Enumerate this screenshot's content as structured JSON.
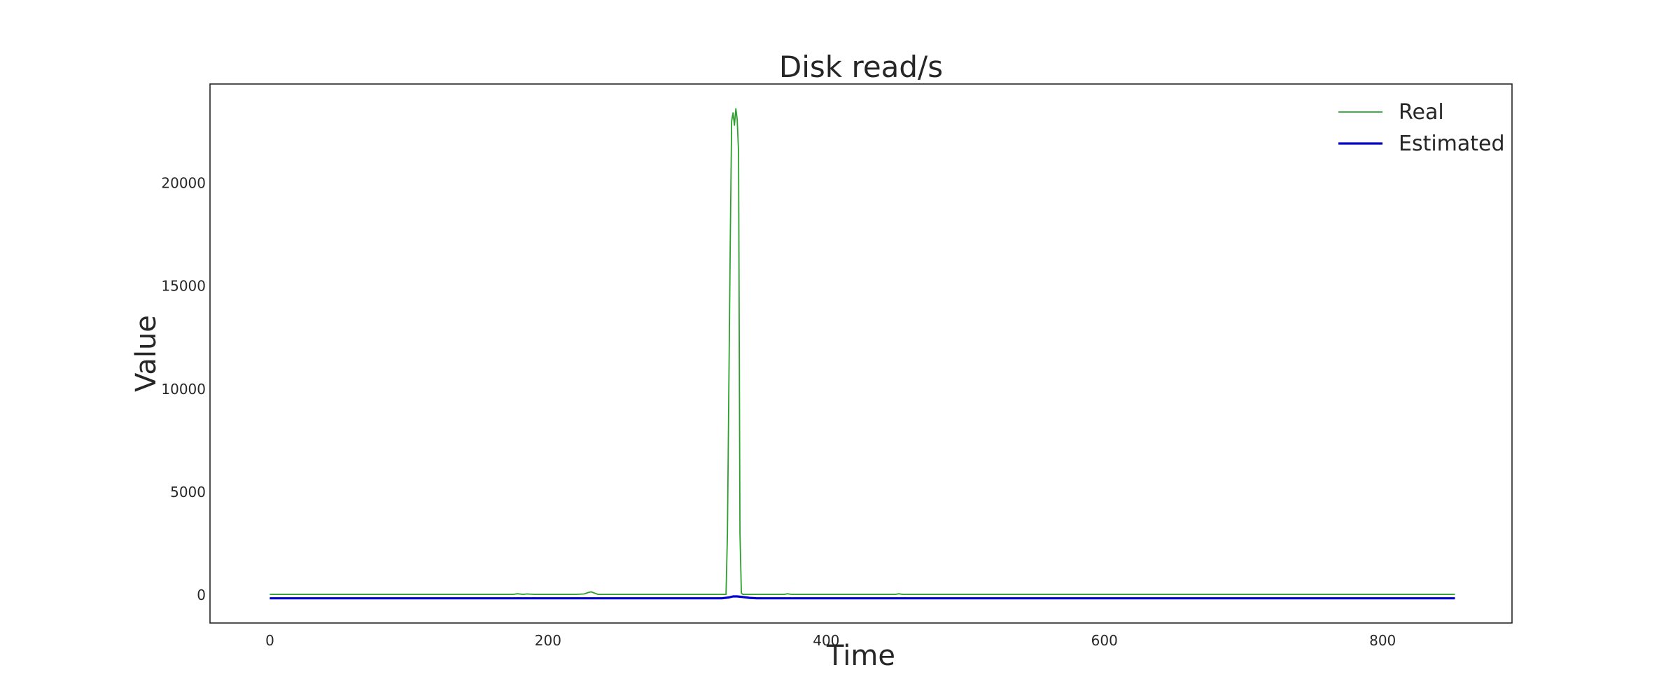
{
  "chart_data": {
    "type": "line",
    "title": "Disk read/s",
    "xlabel": "Time",
    "ylabel": "Value",
    "xlim": [
      -43,
      893
    ],
    "ylim": [
      -1350,
      24800
    ],
    "xticks": [
      0,
      200,
      400,
      600,
      800
    ],
    "yticks": [
      0,
      5000,
      10000,
      15000,
      20000
    ],
    "grid": false,
    "legend_position": "upper-right",
    "series": [
      {
        "name": "Real",
        "color": "#2ca02c",
        "x": [
          0,
          50,
          100,
          150,
          175,
          178,
          182,
          185,
          190,
          220,
          226,
          229,
          231,
          233,
          236,
          240,
          300,
          328,
          329,
          330,
          331,
          332,
          333,
          334,
          335,
          336,
          337,
          338,
          339,
          340,
          345,
          370,
          372,
          375,
          450,
          452,
          455,
          458,
          500,
          600,
          700,
          800,
          852
        ],
        "y": [
          40,
          40,
          40,
          40,
          40,
          70,
          40,
          60,
          40,
          40,
          60,
          130,
          160,
          110,
          40,
          40,
          40,
          40,
          3000,
          10000,
          17000,
          23000,
          23400,
          22800,
          23600,
          23100,
          21500,
          3000,
          100,
          40,
          40,
          40,
          70,
          40,
          40,
          70,
          40,
          40,
          40,
          40,
          40,
          40,
          40
        ]
      },
      {
        "name": "Estimated",
        "color": "#0000cd",
        "x": [
          0,
          100,
          200,
          300,
          325,
          330,
          333,
          336,
          340,
          345,
          350,
          400,
          500,
          600,
          700,
          800,
          852
        ],
        "y": [
          -150,
          -150,
          -150,
          -150,
          -150,
          -110,
          -60,
          -60,
          -90,
          -130,
          -150,
          -150,
          -150,
          -150,
          -150,
          -150,
          -150
        ]
      }
    ]
  }
}
